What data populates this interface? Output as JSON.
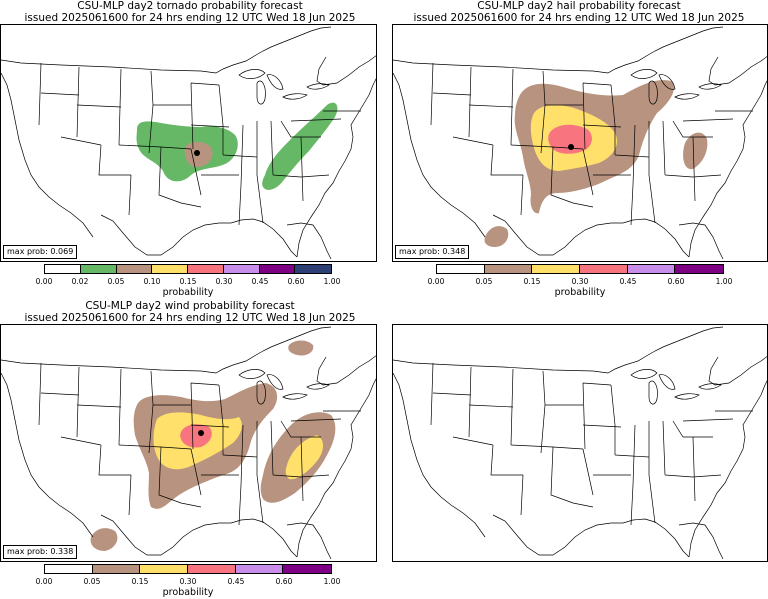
{
  "panels": {
    "tornado": {
      "title_line1": "CSU-MLP day2 tornado probability forecast",
      "title_line2": "issued 2025061600 for 24 hrs ending 12 UTC Wed 18 Jun 2025",
      "max_prob": "max prob: 0.069",
      "colorbar_label": "probability",
      "ticks": [
        "0.00",
        "0.02",
        "0.05",
        "0.10",
        "0.15",
        "0.30",
        "0.45",
        "0.60",
        "1.00"
      ],
      "colors": [
        "#ffffff",
        "#66b866",
        "#b8937f",
        "#ffe06b",
        "#f87580",
        "#c98eea",
        "#7d0085",
        "#2d3f75"
      ]
    },
    "hail": {
      "title_line1": "CSU-MLP day2 hail probability forecast",
      "title_line2": "issued 2025061600 for 24 hrs ending 12 UTC Wed 18 Jun 2025",
      "max_prob": "max prob: 0.348",
      "colorbar_label": "probability",
      "ticks": [
        "0.00",
        "0.05",
        "0.15",
        "0.30",
        "0.45",
        "0.60",
        "1.00"
      ],
      "colors": [
        "#ffffff",
        "#b8937f",
        "#ffe06b",
        "#f87580",
        "#c98eea",
        "#7d0085"
      ]
    },
    "wind": {
      "title_line1": "CSU-MLP day2 wind probability forecast",
      "title_line2": "issued 2025061600 for 24 hrs ending 12 UTC Wed 18 Jun 2025",
      "max_prob": "max prob: 0.338",
      "colorbar_label": "probability",
      "ticks": [
        "0.00",
        "0.05",
        "0.15",
        "0.30",
        "0.45",
        "0.60",
        "1.00"
      ],
      "colors": [
        "#ffffff",
        "#b8937f",
        "#ffe06b",
        "#f87580",
        "#c98eea",
        "#7d0085"
      ]
    }
  }
}
